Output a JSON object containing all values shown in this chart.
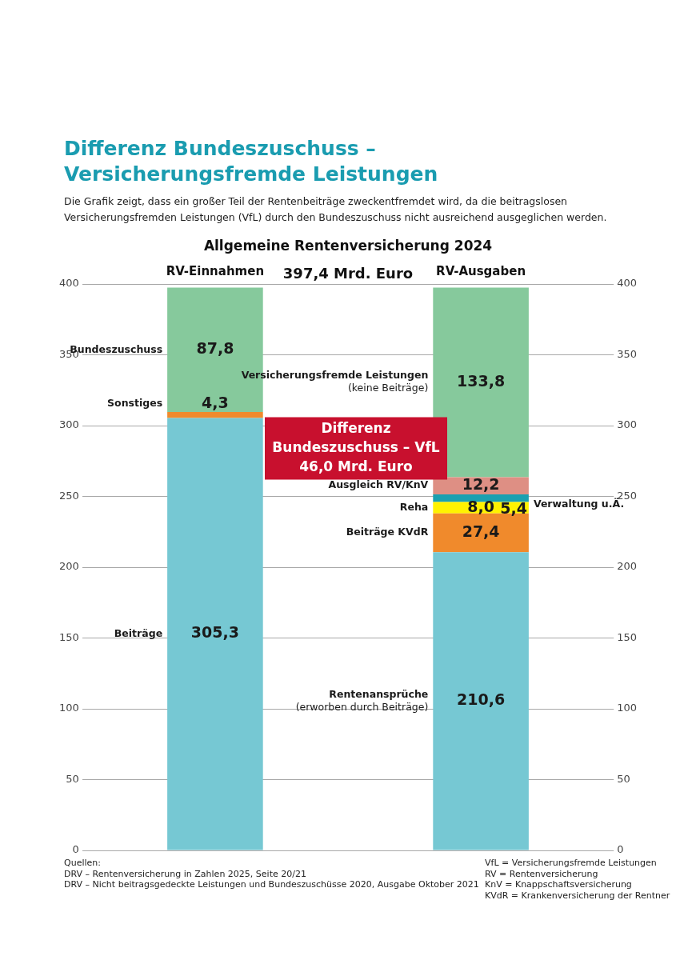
{
  "chart_data": {
    "type": "bar",
    "stacked": true,
    "title": "Differenz Bundeszuschuss – Versicherungsfremde Leistungen",
    "subtitle": "Die Grafik zeigt, dass ein großer Teil der Rentenbeiträge zweckentfremdet wird, da die beitragslosen Versicherungsfremden Leistungen (VfL) durch den Bundeszuschuss nicht ausreichend ausgeglichen werden.",
    "categories": [
      "RV-Einnahmen",
      "RV-Ausgaben"
    ],
    "series": [
      {
        "name": "Beiträge",
        "color": "#76c8d3",
        "values": [
          305.3,
          null
        ],
        "value_labels": [
          "305,3",
          null
        ]
      },
      {
        "name": "Sonstiges",
        "color": "#f08a2c",
        "values": [
          4.3,
          null
        ],
        "value_labels": [
          "4,3",
          null
        ]
      },
      {
        "name": "Bundeszuschuss",
        "color": "#86c99c",
        "values": [
          87.8,
          null
        ],
        "value_labels": [
          "87,8",
          null
        ]
      },
      {
        "name": "Rentenansprüche\n(erworben durch Beiträge)",
        "color": "#76c8d3",
        "values": [
          null,
          210.6
        ],
        "value_labels": [
          null,
          "210,6"
        ]
      },
      {
        "name": "Beiträge KVdR",
        "color": "#f08a2c",
        "values": [
          null,
          27.4
        ],
        "value_labels": [
          null,
          "27,4"
        ]
      },
      {
        "name": "Reha",
        "color": "#fff200",
        "values": [
          null,
          8.0
        ],
        "value_labels": [
          null,
          "8,0"
        ]
      },
      {
        "name": "Verwaltung u.Ä.",
        "color": "#1aa0b0",
        "values": [
          null,
          5.4
        ],
        "value_labels": [
          null,
          "5,4"
        ]
      },
      {
        "name": "Ausgleich RV/KnV",
        "color": "#de8f84",
        "values": [
          null,
          12.2
        ],
        "value_labels": [
          null,
          "12,2"
        ]
      },
      {
        "name": "Versicherungsfremde Leistungen\n(keine Beiträge)",
        "color": "#86c99c",
        "values": [
          null,
          133.8
        ],
        "value_labels": [
          null,
          "133,8"
        ]
      }
    ],
    "ylim": [
      0,
      400
    ],
    "yticks": [
      0,
      50,
      100,
      150,
      200,
      250,
      300,
      350,
      400
    ],
    "y2lim": [
      0,
      400
    ],
    "y2ticks": [
      0,
      50,
      100,
      150,
      200,
      250,
      300,
      350,
      400
    ],
    "grid": "y",
    "legend": false,
    "annotations": [
      "Allgemeine Rentenversicherung 2024",
      "397,4 Mrd. Euro",
      "Differenz\nBundeszuschuss – VfL\n46,0 Mrd. Euro",
      "Quellen:\nDRV – Rentenversicherung in Zahlen 2025, Seite 20/21\nDRV – Nicht beitragsgedeckte Leistungen und Bundeszuschüsse 2020, Ausgabe Oktober 2021",
      "VfL = Versicherungsfremde Leistungen\nRV = Rentenversicherung\nKnV = Knappschaftsversicherung\nKVdR = Krankenversicherung der Rentner"
    ]
  }
}
